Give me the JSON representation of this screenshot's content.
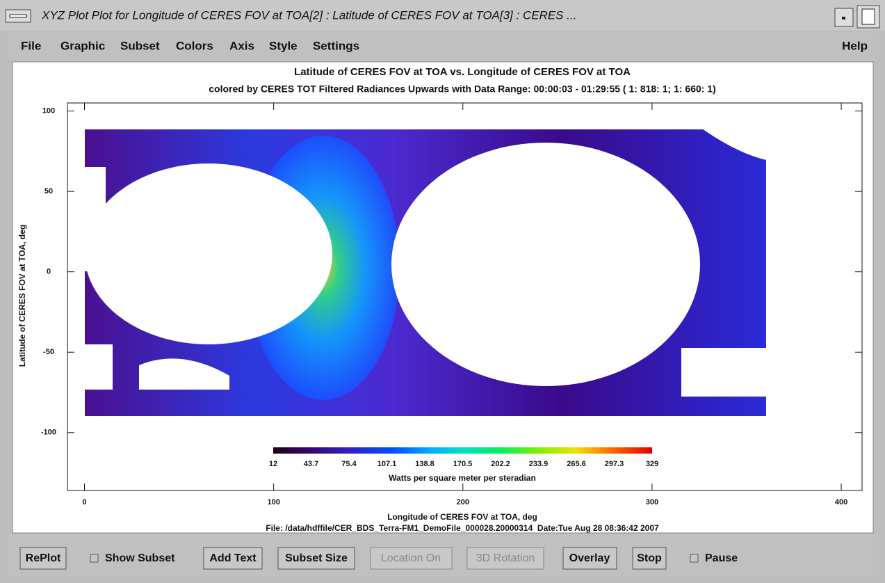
{
  "window": {
    "title": "XYZ Plot Plot for Longitude of CERES FOV at TOA[2] : Latitude of CERES FOV at TOA[3] : CERES ..."
  },
  "menu": {
    "items": [
      "File",
      "Graphic",
      "Subset",
      "Colors",
      "Axis",
      "Style",
      "Settings"
    ],
    "help": "Help"
  },
  "plot": {
    "title": "Latitude of CERES FOV at TOA vs. Longitude of CERES FOV at TOA",
    "subtitle": "colored by CERES TOT Filtered Radiances Upwards with Data Range: 00:00:03 - 01:29:55 ( 1: 818: 1; 1: 660: 1)",
    "x_label": "Longitude of CERES FOV at TOA, deg",
    "y_label": "Latitude of CERES FOV at TOA, deg",
    "xlim": [
      -9,
      411
    ],
    "ylim": [
      -136,
      105
    ],
    "xticks": [
      0,
      100,
      200,
      300,
      400
    ],
    "yticks": [
      100,
      50,
      0,
      -50,
      -100
    ],
    "colorbar": {
      "ticks": [
        12,
        43.7,
        75.4,
        107.1,
        138.8,
        170.5,
        202.2,
        233.9,
        265.6,
        297.3,
        329
      ],
      "label": "Watts per square meter per steradian"
    },
    "file_info": "File: /data/hdffile/CER_BDS_Terra-FM1_DemoFile_000028.20000314  Date:Tue Aug 28 08:36:42 2007"
  },
  "toolbar": [
    "RePlot",
    "Show Subset",
    "Add Text",
    "Subset Size",
    "Location On",
    "3D Rotation",
    "Overlay",
    "Stop",
    "Pause"
  ]
}
